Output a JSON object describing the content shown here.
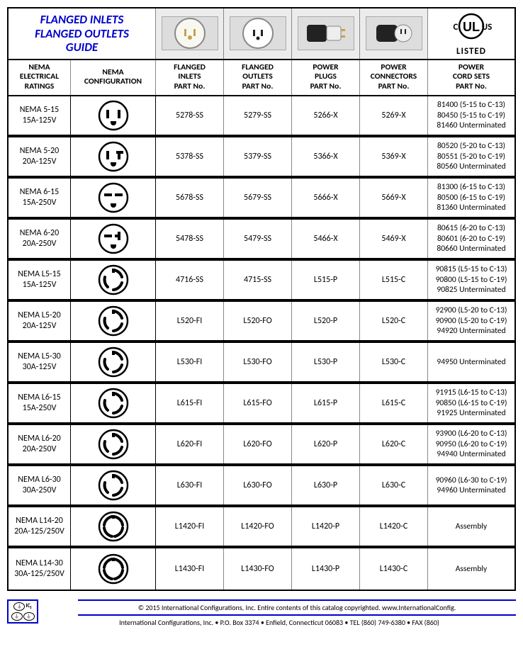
{
  "title_line1": "FLANGED INLETS",
  "title_line2": "FLANGED OUTLETS",
  "title_line3": "GUIDE",
  "ul_listed": "LISTED",
  "headers": {
    "c1a": "NEMA",
    "c1b": "ELECTRICAL",
    "c1c": "RATINGS",
    "c2a": "NEMA",
    "c2b": "CONFIGURATION",
    "c3a": "FLANGED",
    "c3b": "INLETS",
    "c3c": "PART No.",
    "c4a": "FLANGED",
    "c4b": "OUTLETS",
    "c4c": "PART No.",
    "c5a": "POWER",
    "c5b": "PLUGS",
    "c5c": "PART No.",
    "c6a": "POWER",
    "c6b": "CONNECTORS",
    "c6c": "PART No.",
    "c7a": "POWER",
    "c7b": "CORD SETS",
    "c7c": "PART No."
  },
  "rows": [
    {
      "rating1": "NEMA 5-15",
      "rating2": "15A-125V",
      "config": "5-15",
      "inlet": "5278-SS",
      "outlet": "5279-SS",
      "plug": "5266-X",
      "conn": "5269-X",
      "cord": [
        "81400 (5-15 to C-13)",
        "80450 (5-15 to C-19)",
        "81460 Unterminated"
      ]
    },
    {
      "rating1": "NEMA 5-20",
      "rating2": "20A-125V",
      "config": "5-20",
      "inlet": "5378-SS",
      "outlet": "5379-SS",
      "plug": "5366-X",
      "conn": "5369-X",
      "cord": [
        "80520 (5-20 to C-13)",
        "80551 (5-20 to C-19)",
        "80560 Unterminated"
      ]
    },
    {
      "rating1": "NEMA 6-15",
      "rating2": "15A-250V",
      "config": "6-15",
      "inlet": "5678-SS",
      "outlet": "5679-SS",
      "plug": "5666-X",
      "conn": "5669-X",
      "cord": [
        "81300 (6-15 to C-13)",
        "80500 (6-15 to C-19)",
        "81360 Unterminated"
      ]
    },
    {
      "rating1": "NEMA 6-20",
      "rating2": "20A-250V",
      "config": "6-20",
      "inlet": "5478-SS",
      "outlet": "5479-SS",
      "plug": "5466-X",
      "conn": "5469-X",
      "cord": [
        "80615 (6-20 to C-13)",
        "80601 (6-20 to C-19)",
        "80660 Unterminated"
      ]
    },
    {
      "rating1": "NEMA L5-15",
      "rating2": "15A-125V",
      "config": "L3",
      "inlet": "4716-SS",
      "outlet": "4715-SS",
      "plug": "L515-P",
      "conn": "L515-C",
      "cord": [
        "90815 (L5-15 to C-13)",
        "90800 (L5-15 to C-19)",
        "90825 Unterminated"
      ]
    },
    {
      "rating1": "NEMA L5-20",
      "rating2": "20A-125V",
      "config": "L3",
      "inlet": "L520-FI",
      "outlet": "L520-FO",
      "plug": "L520-P",
      "conn": "L520-C",
      "cord": [
        "92900 (L5-20 to C-13)",
        "90900 (L5-20 to C-19)",
        "94920 Unterminated"
      ]
    },
    {
      "rating1": "NEMA L5-30",
      "rating2": "30A-125V",
      "config": "L3",
      "inlet": "L530-FI",
      "outlet": "L530-FO",
      "plug": "L530-P",
      "conn": "L530-C",
      "cord": [
        "94950 Unterminated"
      ]
    },
    {
      "rating1": "NEMA L6-15",
      "rating2": "15A-250V",
      "config": "L3",
      "inlet": "L615-FI",
      "outlet": "L615-FO",
      "plug": "L615-P",
      "conn": "L615-C",
      "cord": [
        "91915 (L6-15 to C-13)",
        "90850 (L6-15 to C-19)",
        "91925 Unterminated"
      ]
    },
    {
      "rating1": "NEMA L6-20",
      "rating2": "20A-250V",
      "config": "L3",
      "inlet": "L620-FI",
      "outlet": "L620-FO",
      "plug": "L620-P",
      "conn": "L620-C",
      "cord": [
        "93900 (L6-20 to C-13)",
        "90950 (L6-20 to C-19)",
        "94940 Unterminated"
      ]
    },
    {
      "rating1": "NEMA L6-30",
      "rating2": "30A-250V",
      "config": "L3",
      "inlet": "L630-FI",
      "outlet": "L630-FO",
      "plug": "L630-P",
      "conn": "L630-C",
      "cord": [
        "90960 (L6-30 to C-19)",
        "94960 Unterminated"
      ]
    },
    {
      "rating1": "NEMA L14-20",
      "rating2": "20A-125/250V",
      "config": "L4",
      "inlet": "L1420-FI",
      "outlet": "L1420-FO",
      "plug": "L1420-P",
      "conn": "L1420-C",
      "cord": [
        "Assembly"
      ]
    },
    {
      "rating1": "NEMA L14-30",
      "rating2": "30A-125/250V",
      "config": "L4",
      "inlet": "L1430-FI",
      "outlet": "L1430-FO",
      "plug": "L1430-P",
      "conn": "L1430-C",
      "cord": [
        "Assembly"
      ]
    }
  ],
  "footer": {
    "copyright": "© 2015 International Configurations, Inc.    Entire contents of this catalog copyrighted.    www.InternationalConfig.",
    "address": "International Configurations, Inc. • P.O. Box 3374 • Enfield, Connecticut 06083 • TEL (860) 749-6380 • FAX (860)"
  },
  "colors": {
    "title": "#0000cc",
    "border_heavy": "#000000",
    "border_light": "#888888",
    "img_bg": "#ececec"
  }
}
